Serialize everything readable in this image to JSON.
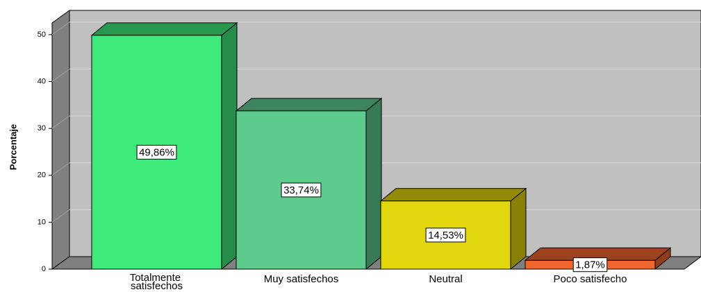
{
  "chart_data": {
    "type": "bar",
    "ylabel": "Porcentaje",
    "categories": [
      "Totalmente satisfechos",
      "Muy satisfechos",
      "Neutral",
      "Poco satisfecho"
    ],
    "values": [
      49.86,
      33.74,
      14.53,
      1.87
    ],
    "value_labels": [
      "49,86%",
      "33,74%",
      "14,53%",
      "1,87%"
    ],
    "colors": [
      "#3dea7a",
      "#5ccb8c",
      "#e2d60c",
      "#f2662e"
    ],
    "ylim": [
      0,
      52.5
    ],
    "yticks": [
      0,
      10,
      20,
      30,
      40,
      50
    ],
    "grid": true
  }
}
